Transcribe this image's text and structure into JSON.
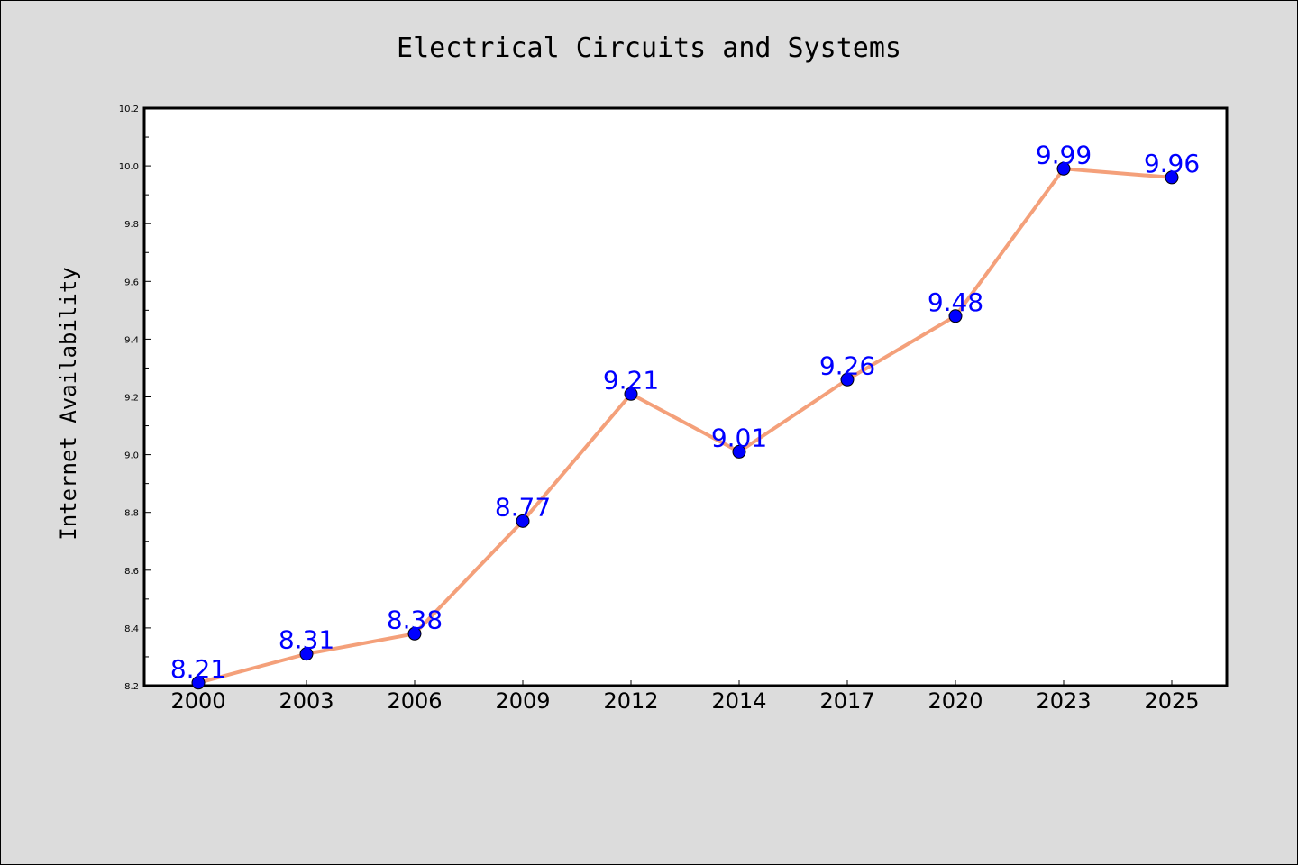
{
  "chart_data": {
    "type": "line",
    "title": "Electrical Circuits and Systems",
    "xlabel": "",
    "ylabel": "Internet Availability",
    "categories": [
      "2000",
      "2003",
      "2006",
      "2009",
      "2012",
      "2014",
      "2017",
      "2020",
      "2023",
      "2025"
    ],
    "series": [
      {
        "values": [
          8.21,
          8.31,
          8.38,
          8.77,
          9.21,
          9.01,
          9.26,
          9.48,
          9.99,
          9.96
        ],
        "line_color": "#f4a07a",
        "marker_color": "#0000ff"
      }
    ],
    "data_labels": [
      "8.21",
      "8.31",
      "8.38",
      "8.77",
      "9.21",
      "9.01",
      "9.26",
      "9.48",
      "9.99",
      "9.96"
    ],
    "ylim": [
      8.2,
      10.2
    ],
    "yticks": [
      8.2,
      8.4,
      8.6,
      8.8,
      9.0,
      9.2,
      9.4,
      9.6,
      9.8,
      10.0,
      10.2
    ],
    "ytick_labels": [
      "8.2",
      "8.4",
      "8.6",
      "8.8",
      "9.0",
      "9.2",
      "9.4",
      "9.6",
      "9.8",
      "10.0",
      "10.2"
    ],
    "grid": false,
    "legend": "none"
  }
}
